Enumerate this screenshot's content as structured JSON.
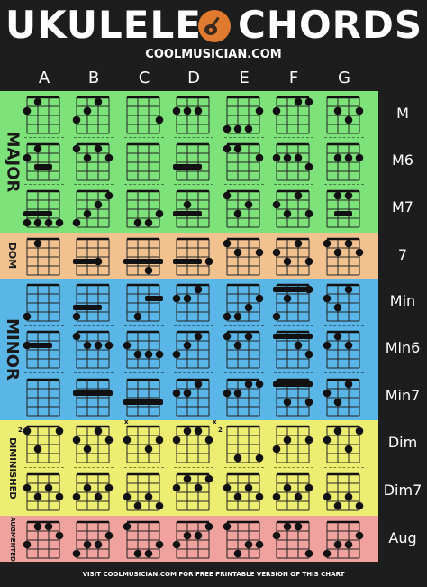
{
  "header": {
    "title_left": "UKULELE",
    "title_right": "CHORDS",
    "subtitle": "COOLMUSICIAN.COM"
  },
  "columns": [
    "A",
    "B",
    "C",
    "D",
    "E",
    "F",
    "G"
  ],
  "sections": [
    {
      "name": "major",
      "label": "MAJOR",
      "color": "#7ee27a"
    },
    {
      "name": "dom",
      "label": "DOM",
      "color": "#f2c190"
    },
    {
      "name": "minor",
      "label": "MINOR",
      "color": "#59b6e6"
    },
    {
      "name": "diminished",
      "label": "DIMINISHED",
      "color": "#eded72"
    },
    {
      "name": "augmented",
      "label": "AUGMENTED",
      "color": "#f0a39e"
    }
  ],
  "rows": [
    "M",
    "M6",
    "M7",
    "7",
    "Min",
    "Min6",
    "Min7",
    "Dim",
    "Dim7",
    "Aug"
  ],
  "fret_markers": {
    "dim_a": "2",
    "dim_e": "2",
    "x": "x"
  },
  "chords": [
    [
      {
        "d": [
          [
            0,
            2
          ],
          [
            1,
            1
          ]
        ]
      },
      {
        "d": [
          [
            0,
            3
          ],
          [
            1,
            2
          ],
          [
            2,
            1
          ]
        ],
        "b": [
          2,
          1,
          3
        ]
      },
      {
        "d": [
          [
            3,
            3
          ]
        ]
      },
      {
        "d": [
          [
            0,
            2
          ],
          [
            1,
            2
          ],
          [
            2,
            2
          ]
        ]
      },
      {
        "d": [
          [
            0,
            4
          ],
          [
            1,
            4
          ],
          [
            2,
            4
          ],
          [
            3,
            2
          ]
        ]
      },
      {
        "d": [
          [
            0,
            2
          ],
          [
            2,
            1
          ],
          [
            3,
            1
          ]
        ]
      },
      {
        "d": [
          [
            1,
            2
          ],
          [
            2,
            3
          ],
          [
            3,
            2
          ]
        ]
      }
    ],
    [
      {
        "d": [
          [
            0,
            2
          ],
          [
            1,
            1
          ]
        ],
        "b": [
          1,
          2,
          3
        ]
      },
      {
        "d": [
          [
            0,
            1
          ],
          [
            1,
            2
          ],
          [
            2,
            1
          ],
          [
            3,
            2
          ]
        ]
      },
      {
        "d": []
      },
      {
        "b": [
          0,
          2,
          3
        ]
      },
      {
        "d": [
          [
            0,
            1
          ],
          [
            1,
            1
          ],
          [
            3,
            2
          ]
        ]
      },
      {
        "d": [
          [
            0,
            2
          ],
          [
            1,
            2
          ],
          [
            2,
            2
          ],
          [
            3,
            3
          ]
        ]
      },
      {
        "d": [
          [
            1,
            2
          ],
          [
            2,
            2
          ],
          [
            3,
            2
          ]
        ]
      }
    ],
    [
      {
        "d": [
          [
            0,
            4
          ],
          [
            1,
            4
          ],
          [
            2,
            4
          ],
          [
            3,
            4
          ]
        ],
        "b": [
          0,
          2,
          3
        ]
      },
      {
        "d": [
          [
            0,
            4
          ],
          [
            1,
            3
          ],
          [
            2,
            2
          ],
          [
            3,
            1
          ]
        ]
      },
      {
        "d": [
          [
            1,
            4
          ],
          [
            2,
            4
          ],
          [
            3,
            3
          ]
        ]
      },
      {
        "d": [
          [
            1,
            2
          ]
        ],
        "b": [
          0,
          2,
          3
        ]
      },
      {
        "d": [
          [
            0,
            1
          ],
          [
            1,
            3
          ],
          [
            2,
            2
          ]
        ]
      },
      {
        "d": [
          [
            0,
            2
          ],
          [
            1,
            3
          ],
          [
            2,
            1
          ],
          [
            3,
            3
          ]
        ]
      },
      {
        "d": [
          [
            1,
            1
          ],
          [
            2,
            1
          ]
        ],
        "b": [
          1,
          2,
          3
        ]
      }
    ],
    [
      {
        "d": [
          [
            1,
            1
          ]
        ]
      },
      {
        "d": [
          [
            2,
            3
          ]
        ],
        "b": [
          0,
          2,
          3
        ]
      },
      {
        "d": [
          [
            2,
            4
          ]
        ],
        "b": [
          0,
          3,
          3
        ]
      },
      {
        "d": [
          [
            3,
            3
          ]
        ],
        "b": [
          0,
          2,
          3
        ]
      },
      {
        "d": [
          [
            0,
            1
          ],
          [
            1,
            2
          ],
          [
            3,
            2
          ]
        ]
      },
      {
        "d": [
          [
            0,
            2
          ],
          [
            1,
            3
          ],
          [
            2,
            1
          ],
          [
            3,
            3
          ]
        ]
      },
      {
        "d": [
          [
            0,
            1
          ],
          [
            1,
            2
          ],
          [
            2,
            1
          ],
          [
            3,
            2
          ]
        ]
      }
    ],
    [
      {
        "d": [
          [
            0,
            4
          ]
        ]
      },
      {
        "d": [
          [
            0,
            4
          ]
        ],
        "b": [
          0,
          2,
          3
        ]
      },
      {
        "d": [
          [
            1,
            4
          ]
        ],
        "b": [
          2,
          3,
          2
        ]
      },
      {
        "d": [
          [
            0,
            2
          ],
          [
            1,
            2
          ],
          [
            2,
            1
          ]
        ]
      },
      {
        "d": [
          [
            0,
            4
          ],
          [
            1,
            4
          ],
          [
            2,
            3
          ],
          [
            3,
            2
          ]
        ]
      },
      {
        "d": [
          [
            0,
            4
          ],
          [
            1,
            2
          ],
          [
            3,
            1
          ]
        ],
        "b": [
          0,
          3,
          1
        ]
      },
      {
        "d": [
          [
            0,
            2
          ],
          [
            1,
            3
          ],
          [
            2,
            1
          ]
        ]
      }
    ],
    [
      {
        "d": [
          [
            0,
            2
          ]
        ],
        "b": [
          0,
          2,
          2
        ]
      },
      {
        "d": [
          [
            0,
            1
          ],
          [
            1,
            2
          ],
          [
            2,
            2
          ],
          [
            3,
            2
          ]
        ]
      },
      {
        "d": [
          [
            0,
            2
          ],
          [
            1,
            3
          ],
          [
            2,
            3
          ],
          [
            3,
            3
          ]
        ]
      },
      {
        "d": [
          [
            0,
            3
          ],
          [
            1,
            2
          ],
          [
            2,
            1
          ]
        ]
      },
      {
        "d": [
          [
            0,
            1
          ],
          [
            1,
            2
          ],
          [
            2,
            1
          ]
        ]
      },
      {
        "d": [
          [
            2,
            2
          ],
          [
            3,
            3
          ]
        ],
        "b": [
          0,
          3,
          1
        ]
      },
      {
        "d": [
          [
            0,
            2
          ],
          [
            1,
            1
          ],
          [
            2,
            2
          ]
        ]
      }
    ],
    [
      {
        "d": []
      },
      {
        "b": [
          0,
          3,
          2
        ]
      },
      {
        "b": [
          0,
          3,
          3
        ]
      },
      {
        "d": [
          [
            0,
            2
          ],
          [
            1,
            2
          ],
          [
            2,
            1
          ]
        ]
      },
      {
        "d": [
          [
            0,
            2
          ],
          [
            1,
            2
          ],
          [
            2,
            1
          ],
          [
            3,
            1
          ]
        ]
      },
      {
        "d": [
          [
            1,
            3
          ],
          [
            3,
            3
          ]
        ],
        "b": [
          0,
          3,
          1
        ]
      },
      {
        "d": [
          [
            0,
            2
          ],
          [
            1,
            3
          ],
          [
            2,
            1
          ]
        ]
      }
    ],
    [
      {
        "d": [
          [
            0,
            1
          ],
          [
            1,
            3
          ],
          [
            3,
            1
          ]
        ]
      },
      {
        "d": [
          [
            0,
            2
          ],
          [
            1,
            3
          ],
          [
            2,
            1
          ],
          [
            3,
            2
          ]
        ]
      },
      {
        "d": [
          [
            0,
            2
          ],
          [
            2,
            3
          ],
          [
            3,
            2
          ]
        ]
      },
      {
        "d": [
          [
            0,
            2
          ],
          [
            1,
            1
          ],
          [
            2,
            1
          ],
          [
            3,
            2
          ]
        ]
      },
      {
        "d": [
          [
            1,
            4
          ],
          [
            3,
            4
          ]
        ]
      },
      {
        "d": [
          [
            0,
            3
          ],
          [
            1,
            2
          ],
          [
            3,
            2
          ]
        ]
      },
      {
        "d": [
          [
            0,
            2
          ],
          [
            1,
            1
          ],
          [
            2,
            3
          ],
          [
            3,
            1
          ]
        ]
      }
    ],
    [
      {
        "d": [
          [
            0,
            2
          ],
          [
            1,
            3
          ],
          [
            2,
            2
          ],
          [
            3,
            3
          ]
        ]
      },
      {
        "d": [
          [
            0,
            3
          ],
          [
            1,
            2
          ],
          [
            2,
            3
          ],
          [
            3,
            2
          ]
        ]
      },
      {
        "d": [
          [
            0,
            3
          ],
          [
            1,
            4
          ],
          [
            2,
            3
          ],
          [
            3,
            4
          ]
        ]
      },
      {
        "d": [
          [
            0,
            2
          ],
          [
            1,
            1
          ],
          [
            2,
            2
          ],
          [
            3,
            1
          ]
        ]
      },
      {
        "d": [
          [
            0,
            2
          ],
          [
            1,
            3
          ],
          [
            2,
            2
          ],
          [
            3,
            3
          ]
        ]
      },
      {
        "d": [
          [
            0,
            3
          ],
          [
            1,
            2
          ],
          [
            2,
            3
          ],
          [
            3,
            2
          ]
        ]
      },
      {
        "d": [
          [
            0,
            3
          ],
          [
            1,
            4
          ],
          [
            2,
            3
          ],
          [
            3,
            4
          ]
        ]
      }
    ],
    [
      {
        "d": [
          [
            0,
            3
          ],
          [
            1,
            1
          ],
          [
            2,
            1
          ],
          [
            3,
            2
          ]
        ]
      },
      {
        "d": [
          [
            0,
            4
          ],
          [
            1,
            3
          ],
          [
            2,
            3
          ],
          [
            3,
            2
          ]
        ]
      },
      {
        "d": [
          [
            0,
            1
          ],
          [
            1,
            4
          ],
          [
            2,
            4
          ],
          [
            3,
            3
          ]
        ]
      },
      {
        "d": [
          [
            0,
            3
          ],
          [
            1,
            2
          ],
          [
            2,
            2
          ],
          [
            3,
            1
          ]
        ]
      },
      {
        "d": [
          [
            0,
            1
          ],
          [
            1,
            4
          ],
          [
            2,
            3
          ],
          [
            3,
            3
          ]
        ]
      },
      {
        "d": [
          [
            0,
            2
          ],
          [
            1,
            1
          ],
          [
            2,
            1
          ],
          [
            3,
            4
          ]
        ]
      },
      {
        "d": [
          [
            0,
            4
          ],
          [
            1,
            3
          ],
          [
            2,
            3
          ],
          [
            3,
            2
          ]
        ]
      }
    ]
  ]
}
